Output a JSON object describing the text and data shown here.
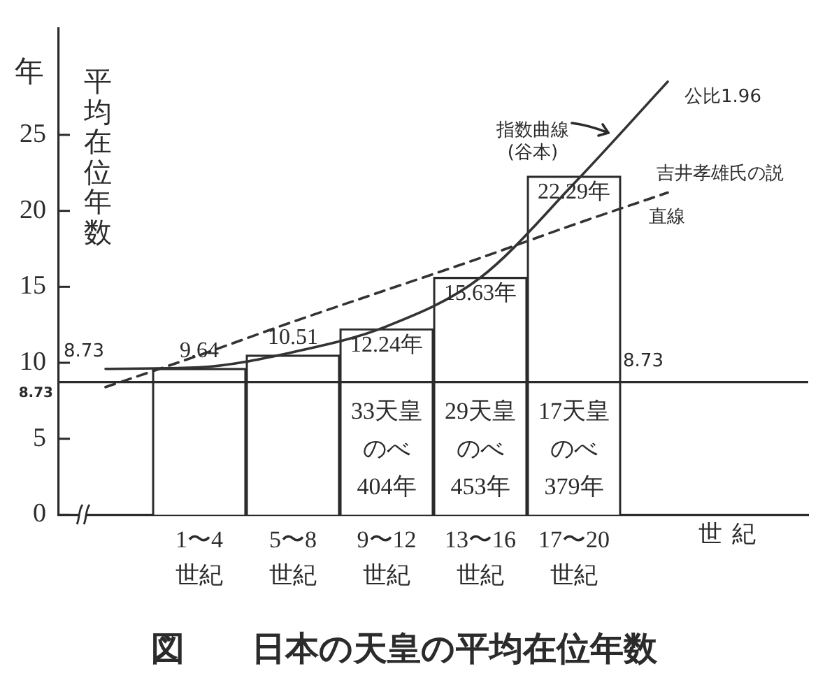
{
  "chart_data": {
    "type": "bar",
    "title": "図　　日本の天皇の平均在位年数",
    "xlabel": "世紀",
    "ylabel": "平均在位年数",
    "categories": [
      null,
      "1〜4世紀",
      "5〜8世紀",
      "9〜12世紀",
      "13〜16世紀",
      "17〜20世紀",
      null,
      null
    ],
    "ylim": [
      0,
      32
    ],
    "yticks": [
      0,
      5,
      10,
      15,
      20,
      25
    ],
    "series": [
      {
        "values": [
          null,
          9.64,
          10.51,
          12.24,
          15.63,
          22.29,
          null,
          null
        ],
        "color": "#ffffff",
        "value_labels": [
          null,
          "9.64",
          "10.51",
          "12.24年",
          "15.63年",
          "22.29年",
          null,
          null
        ]
      },
      {
        "type": "line",
        "values": [
          9.6,
          9.7,
          10.7,
          12.4,
          15.6,
          21.8,
          28.5,
          null
        ],
        "color": "#333333",
        "line_style": "solid"
      },
      {
        "type": "line",
        "values": [
          8.4,
          10.5,
          12.7,
          14.8,
          16.9,
          19.1,
          21.2,
          null
        ],
        "color": "#333333",
        "line_style": "dashed"
      }
    ],
    "ref_lines": [
      {
        "axis": "y",
        "value": 8.73,
        "label": "8.73"
      }
    ],
    "annotations": [
      "年",
      "33天皇のべ404年",
      "29天皇のべ453年",
      "17天皇のべ379年",
      "8.73",
      "8.73",
      "指数曲線(谷本)",
      "公比1.96",
      "吉井孝雄氏の説",
      "直線"
    ],
    "marker": "none",
    "grid": false,
    "legend": false
  }
}
